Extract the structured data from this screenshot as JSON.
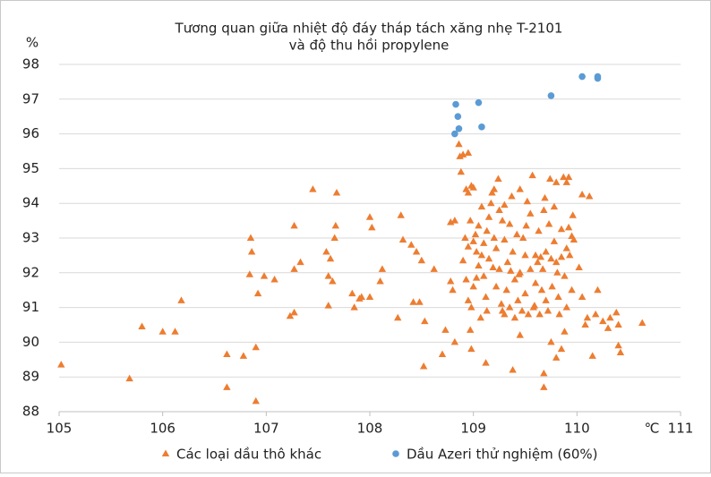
{
  "chart_data": {
    "type": "scatter",
    "title": [
      "Tương quan giữa nhiệt độ đáy tháp tách xăng nhẹ T-2101",
      "và độ thu hồi propylene"
    ],
    "y_label": "%",
    "x_label": "℃",
    "xlim": [
      105,
      111
    ],
    "xticks": [
      105,
      106,
      107,
      108,
      109,
      110,
      111
    ],
    "ylim": [
      88,
      98
    ],
    "yticks": [
      88,
      89,
      90,
      91,
      92,
      93,
      94,
      95,
      96,
      97,
      98
    ],
    "grid": true,
    "legend": "bottom",
    "series": [
      {
        "name": "Các loại dầu thô khác",
        "color": "#ed7d31",
        "marker": "triangle",
        "x": [
          105.02,
          105.68,
          105.8,
          106.0,
          106.12,
          106.18,
          106.62,
          106.62,
          106.78,
          106.85,
          106.86,
          106.84,
          106.9,
          106.9,
          106.92,
          106.98,
          107.08,
          107.23,
          107.27,
          107.27,
          107.27,
          107.33,
          107.45,
          107.58,
          107.6,
          107.6,
          107.62,
          107.64,
          107.66,
          107.67,
          107.68,
          107.83,
          107.85,
          107.9,
          107.92,
          108.0,
          108.02,
          108.0,
          108.1,
          108.12,
          108.27,
          108.3,
          108.32,
          108.4,
          108.42,
          108.45,
          108.48,
          108.5,
          108.52,
          108.53,
          108.62,
          108.7,
          108.73,
          108.78,
          108.78,
          108.8,
          108.82,
          108.82,
          108.86,
          108.87,
          108.9,
          108.88,
          108.95,
          110.05,
          110.08,
          110.1,
          110.12,
          110.15,
          110.18,
          110.2,
          110.25,
          110.3,
          110.32,
          110.38,
          110.4,
          110.42,
          110.4,
          110.63,
          110.05,
          110.02,
          109.95,
          109.97,
          109.93,
          109.9,
          109.92,
          109.96,
          109.12,
          108.97,
          108.98,
          109.3,
          109.38,
          109.45,
          109.68,
          109.68,
          109.75,
          109.8,
          109.85,
          109.88,
          108.93,
          108.95,
          108.98,
          109.0,
          108.92,
          108.95,
          108.97,
          109.0,
          109.02,
          108.9,
          108.93,
          108.95,
          108.98,
          109.0,
          109.03,
          109.05,
          109.05,
          109.08,
          109.1,
          109.1,
          109.12,
          109.13,
          109.15,
          109.15,
          109.17,
          109.18,
          109.2,
          109.2,
          109.22,
          109.22,
          109.24,
          109.25,
          109.25,
          109.27,
          109.28,
          109.3,
          109.3,
          109.32,
          109.33,
          109.35,
          109.35,
          109.37,
          109.38,
          109.4,
          109.4,
          109.42,
          109.43,
          109.45,
          109.45,
          109.47,
          109.48,
          109.5,
          109.5,
          109.52,
          109.53,
          109.55,
          109.55,
          109.57,
          109.58,
          109.6,
          109.6,
          109.62,
          109.63,
          109.64,
          109.65,
          109.66,
          109.68,
          109.7,
          109.7,
          109.72,
          109.73,
          109.74,
          109.75,
          109.76,
          109.78,
          109.78,
          109.8,
          109.8,
          109.82,
          109.83,
          109.85,
          109.85,
          109.87,
          109.88,
          109.9,
          109.9,
          109.92,
          109.95,
          109.03,
          109.07,
          109.08,
          109.13,
          109.19,
          109.28,
          109.36,
          109.44,
          109.51,
          109.59,
          109.67,
          109.69,
          109.81
        ],
        "y": [
          89.35,
          88.95,
          90.45,
          90.3,
          90.3,
          91.2,
          89.65,
          88.7,
          89.6,
          93.0,
          92.6,
          91.95,
          89.85,
          88.3,
          91.4,
          91.9,
          91.8,
          90.75,
          90.85,
          92.1,
          93.35,
          92.3,
          94.4,
          92.6,
          91.9,
          91.05,
          92.4,
          91.75,
          93.0,
          93.35,
          94.3,
          91.4,
          91.0,
          91.25,
          91.3,
          93.6,
          93.3,
          91.3,
          91.75,
          92.1,
          90.7,
          93.65,
          92.95,
          92.8,
          91.15,
          92.6,
          91.15,
          92.35,
          89.3,
          90.6,
          92.1,
          89.65,
          90.35,
          91.75,
          93.45,
          91.5,
          90.0,
          93.5,
          95.7,
          95.35,
          95.4,
          94.9,
          95.45,
          91.3,
          90.5,
          90.7,
          94.2,
          89.6,
          90.8,
          91.5,
          90.6,
          90.4,
          90.7,
          90.85,
          89.9,
          89.7,
          90.5,
          90.55,
          94.25,
          92.15,
          93.05,
          92.95,
          92.5,
          94.6,
          94.75,
          93.65,
          89.4,
          90.35,
          89.8,
          90.8,
          89.2,
          90.2,
          89.1,
          88.7,
          90.0,
          89.55,
          89.8,
          90.3,
          94.4,
          94.3,
          94.5,
          94.45,
          93.0,
          92.75,
          93.5,
          92.9,
          93.1,
          92.35,
          91.8,
          91.2,
          91.0,
          91.6,
          92.6,
          92.2,
          93.35,
          93.9,
          92.85,
          91.9,
          91.3,
          90.9,
          93.6,
          92.4,
          94.0,
          94.3,
          94.4,
          93.0,
          92.7,
          91.6,
          94.7,
          93.8,
          92.1,
          91.1,
          90.9,
          93.95,
          92.95,
          91.5,
          92.3,
          93.4,
          91.0,
          94.2,
          92.6,
          91.8,
          90.7,
          93.1,
          91.2,
          94.4,
          92.0,
          90.9,
          93.0,
          92.5,
          91.4,
          94.05,
          90.8,
          93.7,
          92.1,
          94.8,
          91.0,
          92.5,
          91.7,
          92.3,
          93.2,
          90.8,
          92.45,
          91.5,
          93.8,
          92.6,
          91.2,
          90.9,
          93.4,
          94.7,
          92.4,
          91.6,
          93.9,
          92.9,
          94.6,
          92.3,
          91.3,
          90.8,
          92.45,
          93.25,
          94.75,
          91.9,
          92.7,
          91.0,
          93.3,
          91.5,
          91.85,
          90.7,
          92.5,
          93.2,
          92.15,
          93.5,
          92.05,
          91.95,
          93.35,
          91.05,
          92.1,
          94.15,
          92.0
        ]
      },
      {
        "name": "Dầu Azeri thử nghiệm (60%)",
        "color": "#5b9bd5",
        "marker": "circle",
        "x": [
          108.83,
          108.85,
          108.86,
          108.82,
          109.05,
          109.08,
          109.75,
          110.05,
          110.2,
          110.2
        ],
        "y": [
          96.85,
          96.5,
          96.15,
          96.0,
          96.9,
          96.2,
          97.1,
          97.65,
          97.65,
          97.6
        ]
      }
    ]
  }
}
